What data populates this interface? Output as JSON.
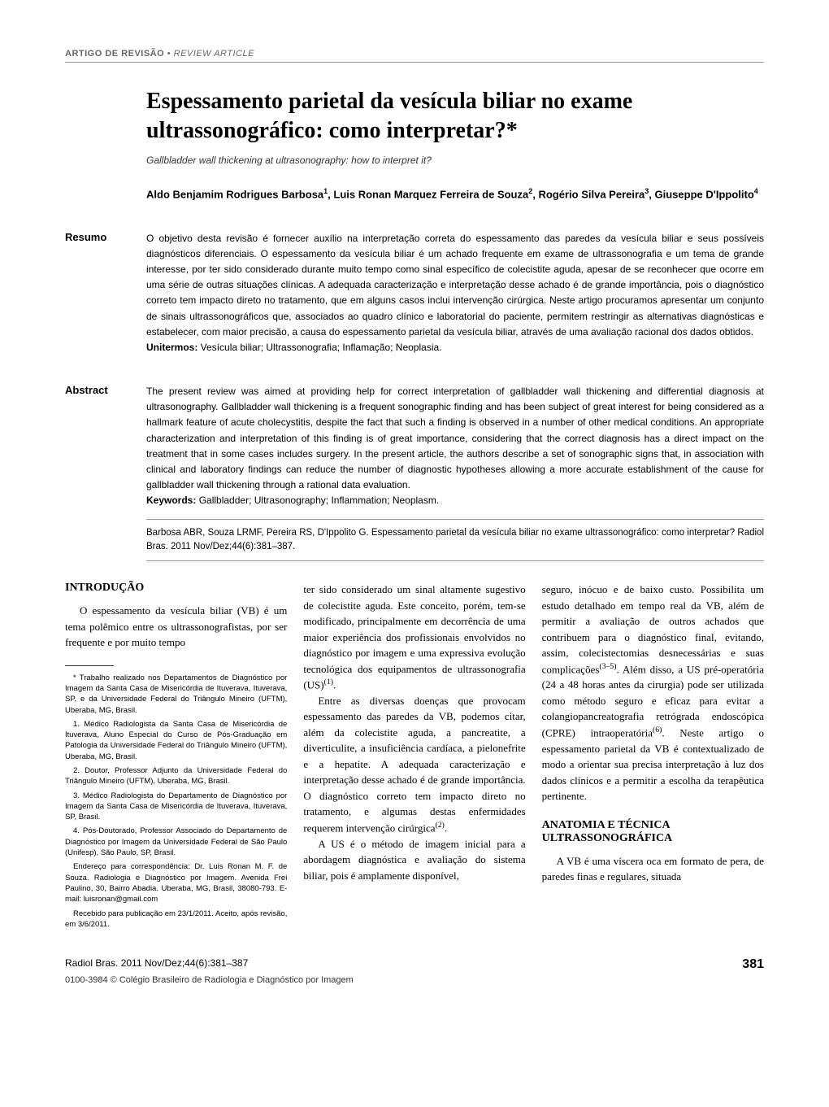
{
  "header": {
    "label_bold": "ARTIGO DE REVISÃO",
    "separator": " • ",
    "label_italic": "REVIEW ARTICLE"
  },
  "title": "Espessamento parietal da vesícula biliar no exame ultrassonográfico: como interpretar?*",
  "subtitle": "Gallbladder wall thickening at ultrasonography: how to interpret it?",
  "authors_html": "Aldo Benjamim Rodrigues Barbosa<sup>1</sup>, Luis Ronan Marquez Ferreira de Souza<sup>2</sup>, Rogério Silva Pereira<sup>3</sup>, Giuseppe D'Ippolito<sup>4</sup>",
  "resumo": {
    "label": "Resumo",
    "text": "O objetivo desta revisão é fornecer auxílio na interpretação correta do espessamento das paredes da vesícula biliar e seus possíveis diagnósticos diferenciais. O espessamento da vesícula biliar é um achado frequente em exame de ultrassonografia e um tema de grande interesse, por ter sido considerado durante muito tempo como sinal específico de colecistite aguda, apesar de se reconhecer que ocorre em uma série de outras situações clínicas. A adequada caracterização e interpretação desse achado é de grande importância, pois o diagnóstico correto tem impacto direto no tratamento, que em alguns casos inclui intervenção cirúrgica. Neste artigo procuramos apresentar um conjunto de sinais ultrassonográficos que, associados ao quadro clínico e laboratorial do paciente, permitem restringir as alternativas diagnósticas e estabelecer, com maior precisão, a causa do espessamento parietal da vesícula biliar, através de uma avaliação racional dos dados obtidos.",
    "keywords_label": "Unitermos:",
    "keywords": " Vesícula biliar; Ultrassonografia; Inflamação; Neoplasia."
  },
  "abstract": {
    "label": "Abstract",
    "text": "The present review was aimed at providing help for correct interpretation of gallbladder wall thickening and differential diagnosis at ultrasonography. Gallbladder wall thickening is a frequent sonographic finding and has been subject of great interest for being considered as a hallmark feature of acute cholecystitis, despite the fact that such a finding is observed in a number of other medical conditions. An appropriate characterization and interpretation of this finding is of great importance, considering that the correct diagnosis has a direct impact on the treatment that in some cases includes surgery. In the present article, the authors describe a set of sonographic signs that, in association with clinical and laboratory findings can reduce the number of diagnostic hypotheses allowing a more accurate establishment of the cause for gallbladder wall thickening through a rational data evaluation.",
    "keywords_label": "Keywords:",
    "keywords": " Gallbladder; Ultrasonography; Inflammation; Neoplasm."
  },
  "citation": "Barbosa ABR, Souza LRMF, Pereira RS, D'Ippolito G. Espessamento parietal da vesícula biliar no exame ultrassonográfico: como interpretar? Radiol Bras. 2011 Nov/Dez;44(6):381–387.",
  "col1": {
    "heading": "INTRODUÇÃO",
    "para1": "O espessamento da vesícula biliar (VB) é um tema polêmico entre os ultrassonografistas, por ser frequente e por muito tempo",
    "footnotes": [
      "* Trabalho realizado nos Departamentos de Diagnóstico por Imagem da Santa Casa de Misericórdia de Ituverava, Ituverava, SP, e da Universidade Federal do Triângulo Mineiro (UFTM), Uberaba, MG, Brasil.",
      "1. Médico Radiologista da Santa Casa de Misericórdia de Ituverava, Aluno Especial do Curso de Pós-Graduação em Patologia da Universidade Federal do Triângulo Mineiro (UFTM), Uberaba, MG, Brasil.",
      "2. Doutor, Professor Adjunto da Universidade Federal do Triângulo Mineiro (UFTM), Uberaba, MG, Brasil.",
      "3. Médico Radiologista do Departamento de Diagnóstico por Imagem da Santa Casa de Misericórdia de Ituverava, Ituverava, SP, Brasil.",
      "4. Pós-Doutorado, Professor Associado do Departamento de Diagnóstico por Imagem da Universidade Federal de São Paulo (Unifesp), São Paulo, SP, Brasil.",
      "Endereço para correspondência: Dr. Luis Ronan M. F. de Souza. Radiologia e Diagnóstico por Imagem. Avenida Frei Paulino, 30, Bairro Abadia. Uberaba, MG, Brasil, 38080-793. E-mail: luisronan@gmail.com",
      "Recebido para publicação em 23/1/2011. Aceito, após revisão, em 3/6/2011."
    ]
  },
  "col2": {
    "para1_html": "ter sido considerado um sinal altamente sugestivo de colecistite aguda. Este conceito, porém, tem-se modificado, principalmente em decorrência de uma maior experiência dos profissionais envolvidos no diagnóstico por imagem e uma expressiva evolução tecnológica dos equipamentos de ultrassonografia (US)<sup>(1)</sup>.",
    "para2_html": "Entre as diversas doenças que provocam espessamento das paredes da VB, podemos citar, além da colecistite aguda, a pancreatite, a diverticulite, a insuficiência cardíaca, a pielonefrite e a hepatite. A adequada caracterização e interpretação desse achado é de grande importância. O diagnóstico correto tem impacto direto no tratamento, e algumas destas enfermidades requerem intervenção cirúrgica<sup>(2)</sup>.",
    "para3_html": "A US é o método de imagem inicial para a abordagem diagnóstica e avaliação do sistema biliar, pois é amplamente disponível,"
  },
  "col3": {
    "para1_html": "seguro, inócuo e de baixo custo. Possibilita um estudo detalhado em tempo real da VB, além de permitir a avaliação de outros achados que contribuem para o diagnóstico final, evitando, assim, colecistectomias desnecessárias e suas complicações<sup>(3–5)</sup>. Além disso, a US pré-operatória (24 a 48 horas antes da cirurgia) pode ser utilizada como método seguro e eficaz para evitar a colangiopancreatografia retrógrada endoscópica (CPRE) intraoperatória<sup>(6)</sup>. Neste artigo o espessamento parietal da VB é contextualizado de modo a orientar sua precisa interpretação à luz dos dados clínicos e a permitir a escolha da terapêutica pertinente.",
    "heading2": "ANATOMIA E TÉCNICA ULTRASSONOGRÁFICA",
    "para2": "A VB é uma víscera oca em formato de pera, de paredes finas e regulares, situada"
  },
  "footer": {
    "journal": "Radiol Bras. 2011 Nov/Dez;44(6):381–387",
    "page": "381",
    "copyright": "0100-3984 © Colégio Brasileiro de Radiologia e Diagnóstico por Imagem"
  }
}
